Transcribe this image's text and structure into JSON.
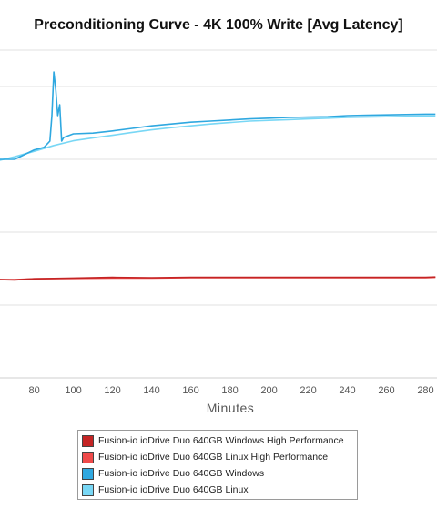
{
  "chart_data": {
    "type": "line",
    "title": "Preconditioning Curve - 4K 100% Write [Avg Latency]",
    "xlabel": "Minutes",
    "ylabel": "",
    "grid": true,
    "legend_position": "bottom",
    "x_ticks": [
      80,
      100,
      120,
      140,
      160,
      180,
      200,
      220,
      240,
      260,
      280
    ],
    "series": [
      {
        "name": "Fusion-io ioDrive Duo 640GB Windows High Performance",
        "color": "#c42424",
        "x": [
          62,
          70,
          80,
          100,
          120,
          140,
          160,
          180,
          200,
          220,
          240,
          260,
          280,
          285
        ],
        "y": [
          0.27,
          0.269,
          0.272,
          0.274,
          0.276,
          0.275,
          0.276,
          0.276,
          0.276,
          0.276,
          0.276,
          0.276,
          0.276,
          0.277
        ]
      },
      {
        "name": "Fusion-io ioDrive Duo 640GB Linux High Performance",
        "color": "#ef4a4a",
        "x": [
          62,
          70,
          80,
          100,
          120,
          140,
          160,
          180,
          200,
          220,
          240,
          260,
          280,
          285
        ],
        "y": [
          0.27,
          0.27,
          0.272,
          0.273,
          0.274,
          0.274,
          0.275,
          0.275,
          0.275,
          0.275,
          0.275,
          0.275,
          0.275,
          0.276
        ]
      },
      {
        "name": "Fusion-io ioDrive Duo 640GB Windows",
        "color": "#2fa8e0",
        "x": [
          62,
          70,
          80,
          85,
          88,
          89,
          90,
          91,
          92,
          93,
          94,
          95,
          100,
          110,
          120,
          130,
          140,
          150,
          160,
          170,
          180,
          190,
          200,
          210,
          220,
          230,
          240,
          250,
          260,
          270,
          280,
          285
        ],
        "y": [
          0.6,
          0.6,
          0.626,
          0.633,
          0.65,
          0.72,
          0.84,
          0.79,
          0.72,
          0.75,
          0.65,
          0.66,
          0.67,
          0.672,
          0.678,
          0.685,
          0.692,
          0.697,
          0.702,
          0.705,
          0.708,
          0.711,
          0.713,
          0.715,
          0.716,
          0.717,
          0.72,
          0.721,
          0.722,
          0.723,
          0.724,
          0.724
        ]
      },
      {
        "name": "Fusion-io ioDrive Duo 640GB Linux",
        "color": "#78d7f5",
        "x": [
          62,
          70,
          80,
          90,
          100,
          110,
          120,
          130,
          140,
          150,
          160,
          170,
          180,
          190,
          200,
          210,
          220,
          230,
          240,
          250,
          260,
          270,
          280,
          285
        ],
        "y": [
          0.597,
          0.607,
          0.622,
          0.638,
          0.651,
          0.659,
          0.666,
          0.674,
          0.681,
          0.687,
          0.692,
          0.697,
          0.701,
          0.705,
          0.707,
          0.709,
          0.711,
          0.713,
          0.715,
          0.716,
          0.717,
          0.718,
          0.719,
          0.719
        ]
      }
    ]
  }
}
